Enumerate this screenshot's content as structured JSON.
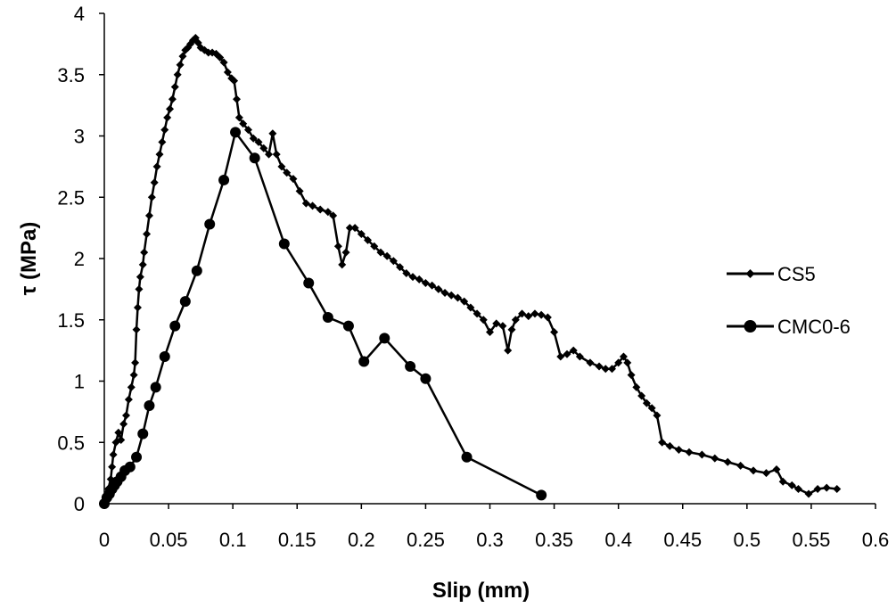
{
  "chart_data": {
    "type": "line",
    "title": "",
    "xlabel": "Slip (mm)",
    "ylabel": "τ (MPa)",
    "xlim": [
      0,
      0.6
    ],
    "ylim": [
      0,
      4
    ],
    "x_ticks": [
      "0",
      "0.05",
      "0.1",
      "0.15",
      "0.2",
      "0.25",
      "0.3",
      "0.35",
      "0.4",
      "0.45",
      "0.5",
      "0.55",
      "0.6"
    ],
    "y_ticks": [
      "0",
      "0.5",
      "1",
      "1.5",
      "2",
      "2.5",
      "3",
      "3.5",
      "4"
    ],
    "grid": false,
    "legend_position": "right",
    "color": "#000000",
    "series": [
      {
        "name": "CS5",
        "marker": "diamond",
        "points": [
          [
            0.0,
            0.0
          ],
          [
            0.002,
            0.05
          ],
          [
            0.003,
            0.12
          ],
          [
            0.005,
            0.2
          ],
          [
            0.006,
            0.3
          ],
          [
            0.007,
            0.4
          ],
          [
            0.009,
            0.5
          ],
          [
            0.011,
            0.58
          ],
          [
            0.013,
            0.52
          ],
          [
            0.015,
            0.65
          ],
          [
            0.017,
            0.72
          ],
          [
            0.019,
            0.85
          ],
          [
            0.021,
            0.95
          ],
          [
            0.023,
            1.05
          ],
          [
            0.024,
            1.15
          ],
          [
            0.025,
            1.42
          ],
          [
            0.026,
            1.6
          ],
          [
            0.027,
            1.75
          ],
          [
            0.028,
            1.85
          ],
          [
            0.03,
            1.95
          ],
          [
            0.031,
            2.05
          ],
          [
            0.033,
            2.2
          ],
          [
            0.035,
            2.35
          ],
          [
            0.037,
            2.5
          ],
          [
            0.039,
            2.62
          ],
          [
            0.041,
            2.75
          ],
          [
            0.043,
            2.85
          ],
          [
            0.045,
            2.95
          ],
          [
            0.047,
            3.05
          ],
          [
            0.049,
            3.15
          ],
          [
            0.051,
            3.22
          ],
          [
            0.053,
            3.3
          ],
          [
            0.055,
            3.4
          ],
          [
            0.057,
            3.5
          ],
          [
            0.059,
            3.58
          ],
          [
            0.061,
            3.65
          ],
          [
            0.063,
            3.7
          ],
          [
            0.065,
            3.72
          ],
          [
            0.067,
            3.75
          ],
          [
            0.069,
            3.78
          ],
          [
            0.071,
            3.8
          ],
          [
            0.073,
            3.76
          ],
          [
            0.075,
            3.72
          ],
          [
            0.078,
            3.7
          ],
          [
            0.081,
            3.68
          ],
          [
            0.084,
            3.68
          ],
          [
            0.087,
            3.67
          ],
          [
            0.09,
            3.64
          ],
          [
            0.093,
            3.6
          ],
          [
            0.096,
            3.52
          ],
          [
            0.099,
            3.47
          ],
          [
            0.101,
            3.45
          ],
          [
            0.103,
            3.3
          ],
          [
            0.105,
            3.15
          ],
          [
            0.108,
            3.1
          ],
          [
            0.112,
            3.05
          ],
          [
            0.116,
            2.98
          ],
          [
            0.12,
            2.95
          ],
          [
            0.124,
            2.9
          ],
          [
            0.128,
            2.85
          ],
          [
            0.131,
            3.02
          ],
          [
            0.134,
            2.85
          ],
          [
            0.138,
            2.75
          ],
          [
            0.142,
            2.7
          ],
          [
            0.147,
            2.65
          ],
          [
            0.152,
            2.55
          ],
          [
            0.157,
            2.45
          ],
          [
            0.162,
            2.43
          ],
          [
            0.168,
            2.4
          ],
          [
            0.174,
            2.38
          ],
          [
            0.178,
            2.35
          ],
          [
            0.182,
            2.1
          ],
          [
            0.185,
            1.95
          ],
          [
            0.188,
            2.05
          ],
          [
            0.191,
            2.25
          ],
          [
            0.195,
            2.25
          ],
          [
            0.2,
            2.2
          ],
          [
            0.205,
            2.15
          ],
          [
            0.21,
            2.1
          ],
          [
            0.215,
            2.05
          ],
          [
            0.22,
            2.02
          ],
          [
            0.225,
            1.98
          ],
          [
            0.23,
            1.93
          ],
          [
            0.235,
            1.88
          ],
          [
            0.24,
            1.85
          ],
          [
            0.245,
            1.83
          ],
          [
            0.25,
            1.8
          ],
          [
            0.255,
            1.78
          ],
          [
            0.26,
            1.75
          ],
          [
            0.265,
            1.72
          ],
          [
            0.27,
            1.7
          ],
          [
            0.275,
            1.68
          ],
          [
            0.28,
            1.65
          ],
          [
            0.285,
            1.6
          ],
          [
            0.29,
            1.55
          ],
          [
            0.295,
            1.5
          ],
          [
            0.3,
            1.4
          ],
          [
            0.305,
            1.47
          ],
          [
            0.31,
            1.45
          ],
          [
            0.314,
            1.25
          ],
          [
            0.317,
            1.42
          ],
          [
            0.32,
            1.5
          ],
          [
            0.325,
            1.55
          ],
          [
            0.33,
            1.53
          ],
          [
            0.335,
            1.55
          ],
          [
            0.34,
            1.54
          ],
          [
            0.345,
            1.52
          ],
          [
            0.35,
            1.4
          ],
          [
            0.355,
            1.2
          ],
          [
            0.36,
            1.22
          ],
          [
            0.365,
            1.25
          ],
          [
            0.37,
            1.2
          ],
          [
            0.378,
            1.15
          ],
          [
            0.385,
            1.12
          ],
          [
            0.39,
            1.1
          ],
          [
            0.395,
            1.1
          ],
          [
            0.4,
            1.15
          ],
          [
            0.404,
            1.2
          ],
          [
            0.407,
            1.15
          ],
          [
            0.41,
            1.05
          ],
          [
            0.414,
            0.95
          ],
          [
            0.418,
            0.88
          ],
          [
            0.422,
            0.82
          ],
          [
            0.426,
            0.78
          ],
          [
            0.43,
            0.72
          ],
          [
            0.434,
            0.5
          ],
          [
            0.44,
            0.47
          ],
          [
            0.447,
            0.44
          ],
          [
            0.455,
            0.42
          ],
          [
            0.465,
            0.4
          ],
          [
            0.475,
            0.37
          ],
          [
            0.485,
            0.34
          ],
          [
            0.495,
            0.31
          ],
          [
            0.505,
            0.27
          ],
          [
            0.515,
            0.25
          ],
          [
            0.523,
            0.28
          ],
          [
            0.528,
            0.18
          ],
          [
            0.535,
            0.15
          ],
          [
            0.54,
            0.12
          ],
          [
            0.548,
            0.08
          ],
          [
            0.555,
            0.12
          ],
          [
            0.562,
            0.13
          ],
          [
            0.57,
            0.12
          ]
        ]
      },
      {
        "name": "CMC0-6",
        "marker": "circle",
        "points": [
          [
            0.0,
            0.0
          ],
          [
            0.002,
            0.05
          ],
          [
            0.004,
            0.08
          ],
          [
            0.006,
            0.12
          ],
          [
            0.008,
            0.15
          ],
          [
            0.01,
            0.18
          ],
          [
            0.013,
            0.22
          ],
          [
            0.016,
            0.27
          ],
          [
            0.02,
            0.3
          ],
          [
            0.025,
            0.38
          ],
          [
            0.03,
            0.57
          ],
          [
            0.035,
            0.8
          ],
          [
            0.04,
            0.95
          ],
          [
            0.047,
            1.2
          ],
          [
            0.055,
            1.45
          ],
          [
            0.063,
            1.65
          ],
          [
            0.072,
            1.9
          ],
          [
            0.082,
            2.28
          ],
          [
            0.093,
            2.64
          ],
          [
            0.102,
            3.03
          ],
          [
            0.117,
            2.82
          ],
          [
            0.14,
            2.12
          ],
          [
            0.159,
            1.8
          ],
          [
            0.174,
            1.52
          ],
          [
            0.19,
            1.45
          ],
          [
            0.202,
            1.16
          ],
          [
            0.218,
            1.35
          ],
          [
            0.238,
            1.12
          ],
          [
            0.25,
            1.02
          ],
          [
            0.282,
            0.38
          ],
          [
            0.34,
            0.07
          ]
        ]
      }
    ]
  }
}
